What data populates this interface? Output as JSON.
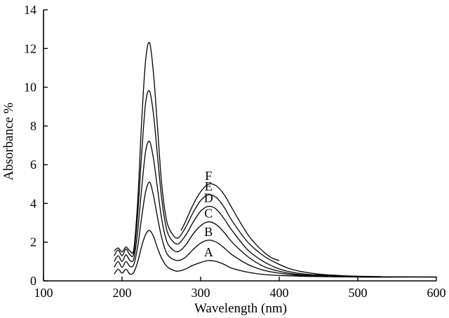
{
  "chart_data": {
    "type": "line",
    "title": "",
    "xlabel": "Wavelength (nm)",
    "ylabel": "Absorbance %",
    "xlim": [
      100,
      600
    ],
    "ylim": [
      0,
      14
    ],
    "xticks": [
      100,
      200,
      300,
      400,
      500,
      600
    ],
    "yticks": [
      0,
      2,
      4,
      6,
      8,
      10,
      12,
      14
    ],
    "grid": false,
    "legend": "none",
    "series": [
      {
        "name": "A",
        "points": [
          [
            190,
            0.35
          ],
          [
            195,
            0.6
          ],
          [
            200,
            0.4
          ],
          [
            205,
            0.6
          ],
          [
            210,
            0.35
          ],
          [
            215,
            0.45
          ],
          [
            220,
            1.0
          ],
          [
            225,
            1.8
          ],
          [
            230,
            2.4
          ],
          [
            235,
            2.6
          ],
          [
            240,
            2.3
          ],
          [
            245,
            1.7
          ],
          [
            250,
            1.2
          ],
          [
            255,
            0.85
          ],
          [
            260,
            0.65
          ],
          [
            270,
            0.5
          ],
          [
            280,
            0.6
          ],
          [
            290,
            0.8
          ],
          [
            300,
            0.95
          ],
          [
            310,
            1.05
          ],
          [
            320,
            1.0
          ],
          [
            330,
            0.85
          ],
          [
            340,
            0.65
          ],
          [
            360,
            0.45
          ],
          [
            380,
            0.33
          ],
          [
            400,
            0.28
          ],
          [
            420,
            0.25
          ],
          [
            450,
            0.22
          ],
          [
            500,
            0.2
          ],
          [
            550,
            0.2
          ],
          [
            600,
            0.2
          ]
        ]
      },
      {
        "name": "B",
        "points": [
          [
            190,
            0.7
          ],
          [
            195,
            1.0
          ],
          [
            200,
            0.7
          ],
          [
            205,
            1.0
          ],
          [
            210,
            0.75
          ],
          [
            215,
            0.85
          ],
          [
            220,
            1.8
          ],
          [
            225,
            3.3
          ],
          [
            230,
            4.6
          ],
          [
            235,
            5.1
          ],
          [
            240,
            4.4
          ],
          [
            245,
            3.3
          ],
          [
            250,
            2.3
          ],
          [
            255,
            1.6
          ],
          [
            260,
            1.25
          ],
          [
            270,
            1.05
          ],
          [
            280,
            1.2
          ],
          [
            290,
            1.6
          ],
          [
            300,
            1.95
          ],
          [
            310,
            2.1
          ],
          [
            320,
            2.0
          ],
          [
            330,
            1.7
          ],
          [
            340,
            1.35
          ],
          [
            360,
            0.85
          ],
          [
            380,
            0.55
          ],
          [
            400,
            0.4
          ],
          [
            420,
            0.3
          ],
          [
            450,
            0.24
          ],
          [
            500,
            0.2
          ],
          [
            550,
            0.2
          ],
          [
            600,
            0.2
          ]
        ]
      },
      {
        "name": "C",
        "points": [
          [
            190,
            1.0
          ],
          [
            195,
            1.3
          ],
          [
            200,
            1.0
          ],
          [
            205,
            1.35
          ],
          [
            210,
            1.05
          ],
          [
            215,
            1.15
          ],
          [
            220,
            2.6
          ],
          [
            225,
            4.8
          ],
          [
            230,
            6.7
          ],
          [
            235,
            7.2
          ],
          [
            240,
            6.3
          ],
          [
            245,
            4.8
          ],
          [
            250,
            3.3
          ],
          [
            255,
            2.3
          ],
          [
            260,
            1.8
          ],
          [
            270,
            1.5
          ],
          [
            280,
            1.8
          ],
          [
            290,
            2.4
          ],
          [
            300,
            2.85
          ],
          [
            310,
            3.05
          ],
          [
            320,
            2.9
          ],
          [
            330,
            2.5
          ],
          [
            340,
            2.0
          ],
          [
            360,
            1.25
          ],
          [
            380,
            0.75
          ],
          [
            400,
            0.5
          ],
          [
            420,
            0.35
          ],
          [
            450,
            0.26
          ],
          [
            500,
            0.22
          ],
          [
            550,
            0.21
          ],
          [
            600,
            0.2
          ]
        ]
      },
      {
        "name": "D",
        "points": [
          [
            190,
            1.3
          ],
          [
            195,
            1.6
          ],
          [
            200,
            1.3
          ],
          [
            205,
            1.65
          ],
          [
            210,
            1.35
          ],
          [
            215,
            1.45
          ],
          [
            220,
            3.5
          ],
          [
            225,
            6.6
          ],
          [
            230,
            9.2
          ],
          [
            235,
            9.8
          ],
          [
            240,
            8.6
          ],
          [
            245,
            6.5
          ],
          [
            250,
            4.4
          ],
          [
            255,
            3.0
          ],
          [
            260,
            2.3
          ],
          [
            270,
            1.9
          ],
          [
            280,
            2.3
          ],
          [
            290,
            3.0
          ],
          [
            300,
            3.6
          ],
          [
            310,
            3.85
          ],
          [
            320,
            3.7
          ],
          [
            330,
            3.2
          ],
          [
            340,
            2.6
          ],
          [
            360,
            1.6
          ],
          [
            380,
            1.0
          ],
          [
            400,
            0.62
          ],
          [
            420,
            0.42
          ],
          [
            450,
            0.3
          ],
          [
            500,
            0.24
          ],
          [
            530,
            0.22
          ]
        ]
      },
      {
        "name": "E",
        "points": [
          [
            190,
            1.55
          ],
          [
            195,
            1.7
          ],
          [
            200,
            1.5
          ],
          [
            205,
            1.75
          ],
          [
            210,
            1.55
          ],
          [
            215,
            1.65
          ],
          [
            220,
            4.2
          ],
          [
            225,
            8.3
          ],
          [
            230,
            11.4
          ],
          [
            235,
            12.3
          ],
          [
            240,
            10.7
          ],
          [
            245,
            8.0
          ],
          [
            250,
            5.2
          ],
          [
            255,
            3.5
          ],
          [
            260,
            2.7
          ],
          [
            270,
            2.2
          ],
          [
            280,
            2.7
          ],
          [
            290,
            3.5
          ],
          [
            300,
            4.15
          ],
          [
            310,
            4.45
          ],
          [
            320,
            4.3
          ],
          [
            330,
            3.8
          ],
          [
            340,
            3.1
          ],
          [
            360,
            2.0
          ],
          [
            380,
            1.3
          ],
          [
            400,
            0.85
          ],
          [
            420,
            0.55
          ],
          [
            450,
            0.35
          ],
          [
            480,
            0.27
          ],
          [
            500,
            0.24
          ]
        ]
      },
      {
        "name": "F",
        "points": [
          [
            275,
            2.6
          ],
          [
            280,
            3.0
          ],
          [
            290,
            3.9
          ],
          [
            300,
            4.6
          ],
          [
            310,
            5.0
          ],
          [
            320,
            4.9
          ],
          [
            330,
            4.45
          ],
          [
            340,
            3.75
          ],
          [
            350,
            3.05
          ],
          [
            360,
            2.4
          ],
          [
            370,
            1.9
          ],
          [
            380,
            1.5
          ],
          [
            390,
            1.2
          ],
          [
            400,
            1.05
          ]
        ]
      }
    ]
  }
}
